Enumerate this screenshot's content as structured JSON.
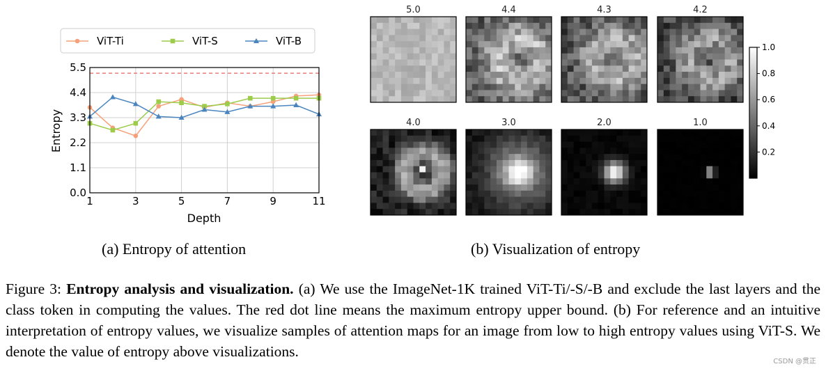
{
  "chart_data": [
    {
      "type": "line",
      "title": "",
      "xlabel": "Depth",
      "ylabel": "Entropy",
      "x": [
        1,
        2,
        3,
        4,
        5,
        6,
        7,
        8,
        9,
        10,
        11
      ],
      "xticks": [
        "1",
        "3",
        "5",
        "7",
        "9",
        "11"
      ],
      "yticks": [
        "0.0",
        "1.1",
        "2.2",
        "3.3",
        "4.4",
        "5.5"
      ],
      "xlim": [
        1,
        11
      ],
      "ylim": [
        0,
        5.5
      ],
      "grid": true,
      "legend_position": "top",
      "upper_bound": 5.25,
      "upper_bound_color": "#e8736c",
      "series": [
        {
          "name": "ViT-Ti",
          "color": "#f5a27a",
          "marker": "circle",
          "values": [
            3.75,
            2.85,
            2.5,
            3.8,
            4.1,
            3.75,
            3.95,
            3.8,
            4.0,
            4.25,
            4.3
          ]
        },
        {
          "name": "ViT-S",
          "color": "#9ccc4a",
          "marker": "square",
          "values": [
            3.05,
            2.75,
            3.05,
            4.0,
            3.95,
            3.8,
            3.9,
            4.15,
            4.15,
            4.15,
            4.15
          ]
        },
        {
          "name": "ViT-B",
          "color": "#4a85c0",
          "marker": "triangle",
          "values": [
            3.35,
            4.2,
            3.9,
            3.35,
            3.3,
            3.65,
            3.55,
            3.8,
            3.8,
            3.85,
            3.45
          ]
        }
      ]
    },
    {
      "type": "heatmap",
      "panels": [
        {
          "label": "5.0",
          "entropy": 5.0
        },
        {
          "label": "4.4",
          "entropy": 4.4
        },
        {
          "label": "4.3",
          "entropy": 4.3
        },
        {
          "label": "4.2",
          "entropy": 4.2
        },
        {
          "label": "4.0",
          "entropy": 4.0
        },
        {
          "label": "3.0",
          "entropy": 3.0
        },
        {
          "label": "2.0",
          "entropy": 2.0
        },
        {
          "label": "1.0",
          "entropy": 1.0
        }
      ],
      "colorbar_ticks": [
        "1.0",
        "0.8",
        "0.6",
        "0.4",
        "0.2"
      ],
      "colorbar_range": [
        0.0,
        1.0
      ]
    }
  ],
  "subcaptions": {
    "a": "(a) Entropy of attention",
    "b": "(b) Visualization of entropy"
  },
  "caption": {
    "prefix": "Figure 3: ",
    "bold": "Entropy analysis and visualization.",
    "text": " (a) We use the ImageNet-1K trained ViT-Ti/-S/-B and exclude the last layers and the class token in computing the values. The red dot line means the maximum entropy upper bound. (b) For reference and an intuitive interpretation of entropy values, we visualize samples of attention maps for an image from low to high entropy values using ViT-S. We denote the value of entropy above visualizations."
  },
  "watermark": "CSDN @贯正"
}
